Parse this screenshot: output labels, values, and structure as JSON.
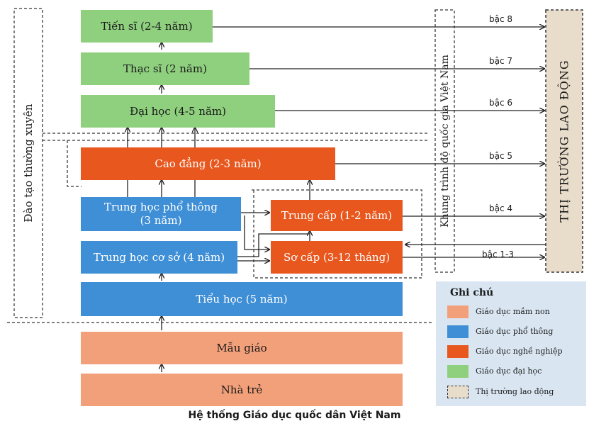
{
  "boxes": {
    "tien_si": "Tiến sĩ (2-4 năm)",
    "thac_si": "Thạc sĩ (2 năm)",
    "dai_hoc": "Đại học (4-5 năm)",
    "cao_dang": "Cao đẳng (2-3 năm)",
    "thpt_line1": "Trung học phổ thông",
    "thpt_line2": "(3 năm)",
    "trung_cap": "Trung cấp (1-2 năm)",
    "thcs": "Trung học cơ sở (4 năm)",
    "so_cap": "Sơ cấp (3-12 tháng)",
    "tieu_hoc": "Tiểu học (5 năm)",
    "mau_giao": "Mẫu giáo",
    "nha_tre": "Nhà trẻ"
  },
  "side_labels": {
    "continuing": "Đào tạo thường xuyên",
    "framework": "Khung trình độ quốc gia Việt Nam",
    "labor_market": "THỊ TRƯỜNG LAO ĐỘNG"
  },
  "levels": [
    "bậc 8",
    "bậc 7",
    "bậc 6",
    "bậc 5",
    "bậc 4",
    "bậc 1-3"
  ],
  "legend": {
    "title": "Ghi chú",
    "items": [
      {
        "label": "Giáo dục mầm non",
        "color": "#f2a07a"
      },
      {
        "label": "Giáo dục phổ thông",
        "color": "#3f8fd6"
      },
      {
        "label": "Giáo dục nghề nghiệp",
        "color": "#e8571e"
      },
      {
        "label": "Giáo dục đại học",
        "color": "#8fd07f"
      },
      {
        "label": "Thị trường lao động",
        "color": "#e8dccb"
      }
    ]
  },
  "caption": "Hệ thống Giáo dục quốc dân Việt Nam"
}
